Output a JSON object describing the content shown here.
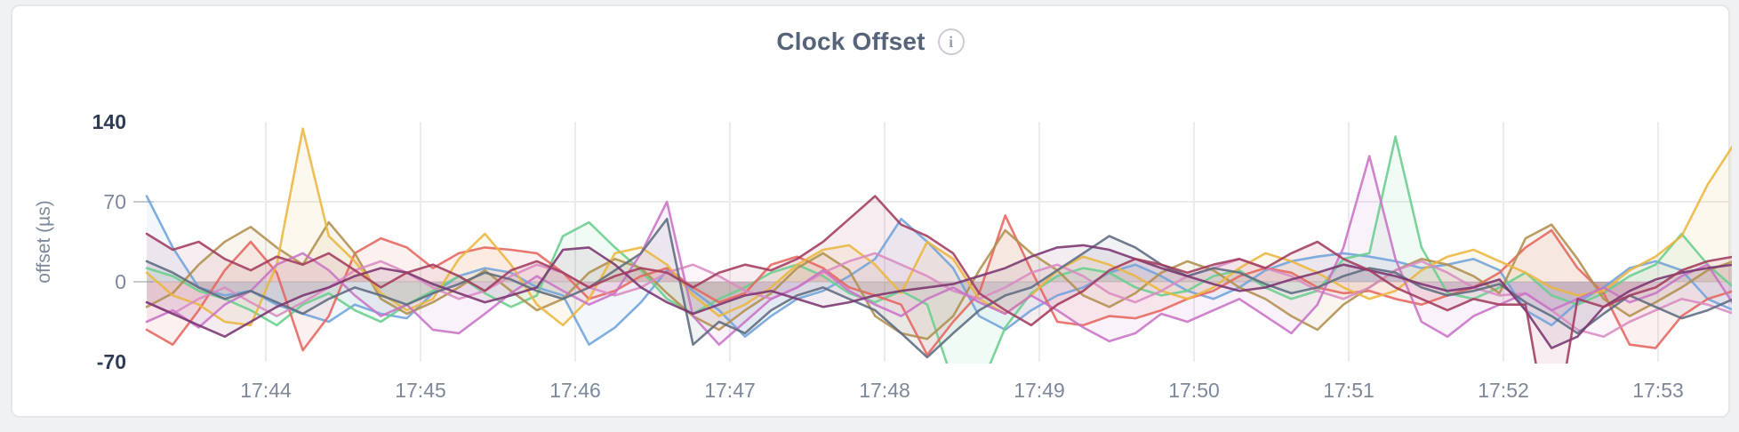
{
  "card": {
    "background": "#ffffff",
    "border_color": "#e4e6ea"
  },
  "header": {
    "title": "Clock Offset",
    "title_color": "#566378",
    "info_icon_glyph": "i"
  },
  "chart_data": {
    "type": "line",
    "title": "Clock Offset",
    "xlabel": "",
    "ylabel": "offset (µs)",
    "ylim": [
      -70,
      140
    ],
    "x_start_time": "17:43:15",
    "x_step_seconds": 10,
    "x_tick_labels": [
      "17:44",
      "17:45",
      "17:46",
      "17:47",
      "17:48",
      "17:49",
      "17:50",
      "17:51",
      "17:52",
      "17:53"
    ],
    "yticks": [
      {
        "label": "140",
        "value": 140,
        "strong": true,
        "grid": false
      },
      {
        "label": "70",
        "value": 70,
        "strong": false,
        "grid": true
      },
      {
        "label": "0",
        "value": 0,
        "strong": false,
        "grid": true
      },
      {
        "label": "-70",
        "value": -70,
        "strong": true,
        "grid": false
      }
    ],
    "legend_position": "none",
    "grid": {
      "vertical": true,
      "horizontal": true
    },
    "colors": {
      "tick_strong": "#2e3c55",
      "tick_muted": "#7d8899",
      "gridline": "#eaebed",
      "tick_dash": "#c6cad1"
    },
    "series": [
      {
        "name": "series-1",
        "color": "#6FA3DB",
        "values": [
          75,
          30,
          -5,
          -12,
          -8,
          -20,
          -28,
          -35,
          -20,
          -28,
          -32,
          -10,
          5,
          12,
          8,
          -5,
          -12,
          -55,
          -40,
          -18,
          10,
          -8,
          -25,
          -48,
          -30,
          -15,
          -8,
          5,
          20,
          55,
          35,
          12,
          -30,
          -42,
          -25,
          -12,
          -5,
          8,
          15,
          5,
          -8,
          -15,
          -5,
          10,
          18,
          22,
          25,
          22,
          18,
          12,
          15,
          20,
          10,
          -25,
          -38,
          -18,
          -5,
          12,
          18,
          10,
          -15,
          -25
        ]
      },
      {
        "name": "series-2",
        "color": "#69CE8D",
        "values": [
          12,
          5,
          -8,
          -15,
          -25,
          -38,
          -20,
          -10,
          -25,
          -35,
          -20,
          -8,
          5,
          -10,
          -22,
          -12,
          40,
          52,
          30,
          10,
          -15,
          -28,
          -15,
          -5,
          8,
          15,
          5,
          -10,
          -18,
          -8,
          -20,
          -88,
          -95,
          -40,
          -10,
          5,
          12,
          8,
          -5,
          -12,
          -8,
          5,
          10,
          -5,
          -15,
          -8,
          20,
          25,
          127,
          30,
          -10,
          -15,
          -5,
          8,
          -12,
          -20,
          -10,
          5,
          15,
          42,
          15,
          -5
        ]
      },
      {
        "name": "series-3",
        "color": "#E6655E",
        "values": [
          -42,
          -55,
          -25,
          10,
          35,
          8,
          -60,
          -30,
          25,
          38,
          30,
          12,
          25,
          30,
          28,
          25,
          8,
          -15,
          -8,
          5,
          12,
          -5,
          -18,
          -10,
          15,
          22,
          12,
          -5,
          -12,
          -20,
          -64,
          -35,
          -10,
          58,
          10,
          -35,
          -38,
          -30,
          -32,
          -25,
          -15,
          -8,
          5,
          12,
          8,
          -5,
          -10,
          -8,
          -15,
          -20,
          -12,
          -5,
          8,
          30,
          45,
          12,
          -10,
          -55,
          -58,
          -30,
          -15,
          -8
        ]
      },
      {
        "name": "series-4",
        "color": "#B08F4D",
        "values": [
          -22,
          -10,
          15,
          35,
          48,
          30,
          15,
          52,
          25,
          -15,
          -28,
          -18,
          -5,
          10,
          -8,
          -25,
          -15,
          8,
          20,
          12,
          -10,
          -30,
          -42,
          -25,
          -10,
          12,
          25,
          10,
          -30,
          -45,
          -50,
          -30,
          10,
          45,
          25,
          10,
          -12,
          -22,
          -10,
          8,
          18,
          10,
          -5,
          -15,
          -30,
          -42,
          -20,
          -5,
          10,
          20,
          15,
          5,
          -10,
          38,
          50,
          20,
          -15,
          -30,
          -18,
          -5,
          10,
          18
        ]
      },
      {
        "name": "series-5",
        "color": "#EBB63F",
        "values": [
          8,
          -12,
          -20,
          -35,
          -38,
          15,
          134,
          40,
          18,
          -10,
          -25,
          -15,
          20,
          42,
          15,
          -20,
          -38,
          -15,
          25,
          30,
          15,
          -12,
          -30,
          -20,
          -5,
          15,
          28,
          32,
          15,
          -10,
          35,
          20,
          -15,
          -28,
          -12,
          10,
          22,
          15,
          5,
          -8,
          -15,
          -5,
          12,
          25,
          18,
          8,
          -5,
          -15,
          -8,
          10,
          22,
          28,
          18,
          8,
          -5,
          -12,
          -8,
          10,
          22,
          40,
          85,
          120
        ]
      },
      {
        "name": "series-6",
        "color": "#D98BC1",
        "values": [
          -18,
          -28,
          -15,
          -5,
          -18,
          -30,
          -18,
          -5,
          10,
          18,
          8,
          -5,
          -15,
          -8,
          5,
          15,
          8,
          -5,
          -12,
          -5,
          8,
          15,
          5,
          -8,
          -15,
          -5,
          8,
          18,
          25,
          15,
          5,
          -8,
          -15,
          -5,
          8,
          15,
          5,
          -10,
          -18,
          -8,
          5,
          12,
          20,
          12,
          5,
          -8,
          -15,
          -5,
          10,
          18,
          8,
          -5,
          -12,
          -10,
          -25,
          -42,
          -48,
          -35,
          -25,
          -15,
          -20,
          -28
        ]
      },
      {
        "name": "series-7",
        "color": "#C873C6",
        "values": [
          -35,
          -25,
          -40,
          -20,
          -8,
          15,
          25,
          10,
          -12,
          -30,
          -20,
          -42,
          -45,
          -28,
          -10,
          5,
          -8,
          -20,
          -10,
          25,
          70,
          -30,
          -55,
          -35,
          -15,
          -5,
          10,
          -8,
          -20,
          -30,
          -15,
          -5,
          -18,
          -28,
          -12,
          -25,
          -40,
          -52,
          -45,
          -28,
          -35,
          -25,
          -15,
          -30,
          -45,
          -20,
          30,
          110,
          20,
          -35,
          -48,
          -30,
          -20,
          -10,
          -25,
          -15,
          -5,
          -18,
          -10,
          5,
          15,
          -20
        ]
      },
      {
        "name": "series-8",
        "color": "#5D6B80",
        "values": [
          18,
          8,
          -5,
          -15,
          -8,
          -18,
          -28,
          -15,
          -5,
          -12,
          -20,
          -10,
          -2,
          8,
          2,
          -8,
          -15,
          -5,
          10,
          25,
          55,
          -55,
          -35,
          -45,
          -25,
          -12,
          -5,
          -15,
          -25,
          -45,
          -66,
          -45,
          -25,
          -12,
          -5,
          10,
          25,
          40,
          30,
          15,
          5,
          12,
          8,
          -2,
          -10,
          -5,
          5,
          12,
          8,
          -5,
          -12,
          -8,
          -2,
          -18,
          -30,
          -45,
          -28,
          -12,
          -22,
          -32,
          -25,
          -15
        ]
      },
      {
        "name": "series-9",
        "color": "#7A3470",
        "values": [
          -18,
          -28,
          -38,
          -48,
          -35,
          -22,
          -12,
          -5,
          5,
          12,
          8,
          -2,
          -10,
          -18,
          -12,
          -5,
          28,
          30,
          15,
          -5,
          -18,
          -28,
          -20,
          -12,
          -8,
          -15,
          -22,
          -18,
          -12,
          -8,
          -5,
          -2,
          5,
          12,
          22,
          30,
          32,
          28,
          20,
          12,
          5,
          -2,
          -8,
          -5,
          2,
          8,
          15,
          10,
          5,
          -2,
          -8,
          -5,
          2,
          -25,
          -58,
          -48,
          -22,
          -8,
          2,
          8,
          12,
          15
        ]
      },
      {
        "name": "series-10",
        "color": "#A23B5D",
        "values": [
          42,
          28,
          35,
          20,
          10,
          22,
          15,
          25,
          10,
          -5,
          8,
          15,
          5,
          -8,
          10,
          18,
          8,
          -5,
          5,
          12,
          8,
          -5,
          8,
          15,
          10,
          20,
          35,
          55,
          75,
          50,
          40,
          25,
          -10,
          -25,
          -38,
          -20,
          -8,
          10,
          20,
          15,
          8,
          15,
          20,
          12,
          25,
          35,
          20,
          10,
          -5,
          -15,
          -25,
          -15,
          -20,
          -20,
          -150,
          -15,
          -22,
          -12,
          -5,
          10,
          18,
          22
        ]
      }
    ]
  }
}
